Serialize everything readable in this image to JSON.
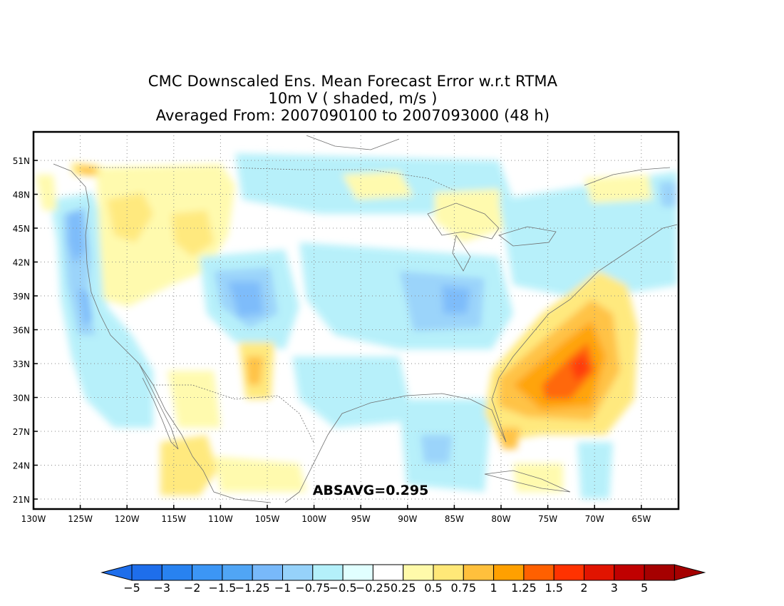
{
  "title": {
    "line1": "CMC Downscaled Ens. Mean Forecast Error w.r.t RTMA",
    "line2": "10m V ( shaded, m/s )",
    "line3": "Averaged From: 2007090100 to 2007093000 (48 h)"
  },
  "map": {
    "lat_labels": [
      "51N",
      "48N",
      "45N",
      "42N",
      "39N",
      "36N",
      "33N",
      "30N",
      "27N",
      "24N",
      "21N"
    ],
    "lon_labels": [
      "130W",
      "125W",
      "120W",
      "115W",
      "110W",
      "105W",
      "100W",
      "95W",
      "90W",
      "85W",
      "80W",
      "75W",
      "70W",
      "65W"
    ],
    "annotation": "ABSAVG=0.295"
  },
  "colorbar": {
    "labels": [
      "-5",
      "-3",
      "-2",
      "-1.5",
      "-1.25",
      "-1",
      "-0.75",
      "-0.5",
      "-0.25",
      "0.25",
      "0.5",
      "0.75",
      "1",
      "1.25",
      "1.5",
      "2",
      "3",
      "5"
    ],
    "colors": [
      "#1e6eeb",
      "#2882f0",
      "#3c96f5",
      "#50a5f5",
      "#78b9fa",
      "#96d2fa",
      "#b4f0fa",
      "#e1ffff",
      "#ffffff",
      "#fffaaa",
      "#ffe878",
      "#ffc03c",
      "#ffa000",
      "#ff6000",
      "#ff3200",
      "#e11400",
      "#c00000",
      "#a50000"
    ],
    "under_color": "#1e6eeb",
    "over_color": "#a50000"
  }
}
